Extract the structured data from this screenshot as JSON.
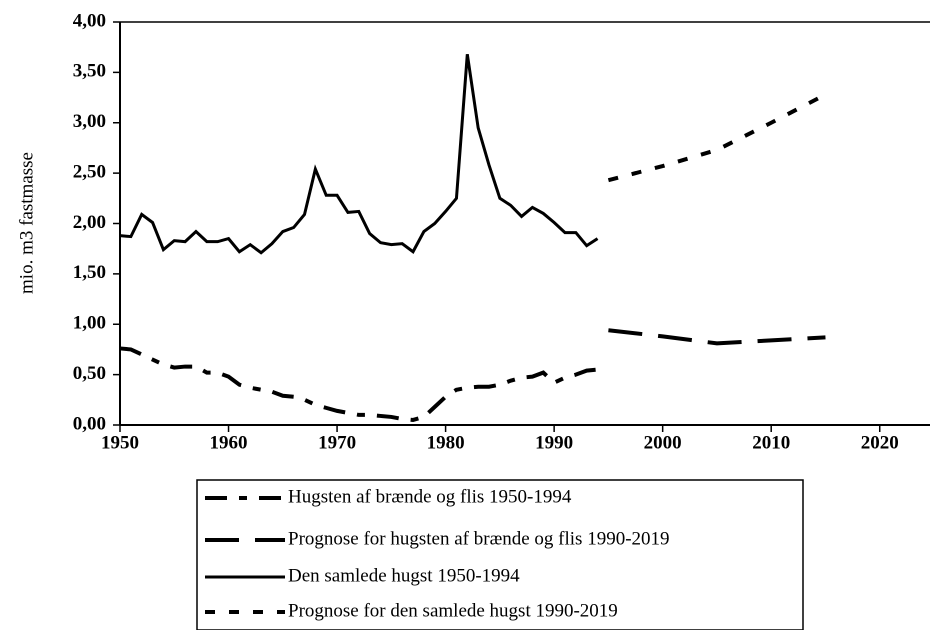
{
  "chart_data": {
    "type": "line",
    "y_label": "mio. m3 fastmasse",
    "xlim": [
      1950,
      2025
    ],
    "xticks": [
      1950,
      1960,
      1970,
      1980,
      1990,
      2000,
      2010,
      2020
    ],
    "ylim": [
      0,
      4
    ],
    "yticks": [
      {
        "value": 0,
        "label": "0,00"
      },
      {
        "value": 0.5,
        "label": "0,50"
      },
      {
        "value": 1,
        "label": "1,00"
      },
      {
        "value": 1.5,
        "label": "1,50"
      },
      {
        "value": 2,
        "label": "2,00"
      },
      {
        "value": 2.5,
        "label": "2,50"
      },
      {
        "value": 3,
        "label": "3,00"
      },
      {
        "value": 3.5,
        "label": "3,50"
      },
      {
        "value": 4,
        "label": "4,00"
      }
    ],
    "series": [
      {
        "name": "Hugsten af brænde og flis 1950-1994",
        "color": "#000000",
        "style": "dash-mixed",
        "x": [
          1950,
          1951,
          1952,
          1953,
          1954,
          1955,
          1956,
          1957,
          1958,
          1959,
          1960,
          1961,
          1962,
          1963,
          1964,
          1965,
          1966,
          1967,
          1968,
          1969,
          1970,
          1971,
          1972,
          1973,
          1974,
          1975,
          1976,
          1977,
          1978,
          1979,
          1980,
          1981,
          1982,
          1983,
          1984,
          1985,
          1986,
          1987,
          1988,
          1989,
          1990,
          1991,
          1992,
          1993,
          1994
        ],
        "values": [
          0.76,
          0.75,
          0.7,
          0.65,
          0.6,
          0.57,
          0.58,
          0.58,
          0.52,
          0.52,
          0.48,
          0.4,
          0.37,
          0.35,
          0.33,
          0.29,
          0.28,
          0.25,
          0.2,
          0.17,
          0.14,
          0.12,
          0.1,
          0.1,
          0.09,
          0.08,
          0.06,
          0.05,
          0.08,
          0.18,
          0.28,
          0.35,
          0.37,
          0.38,
          0.38,
          0.4,
          0.44,
          0.47,
          0.48,
          0.52,
          0.42,
          0.47,
          0.5,
          0.54,
          0.55
        ]
      },
      {
        "name": "Prognose for hugsten af brænde og flis 1990-2019",
        "color": "#000000",
        "style": "dash-long",
        "x": [
          1995,
          2000,
          2005,
          2010,
          2015
        ],
        "values": [
          0.94,
          0.88,
          0.81,
          0.84,
          0.87
        ]
      },
      {
        "name": "Den samlede hugst 1950-1994",
        "color": "#000000",
        "style": "solid",
        "x": [
          1950,
          1951,
          1952,
          1953,
          1954,
          1955,
          1956,
          1957,
          1958,
          1959,
          1960,
          1961,
          1962,
          1963,
          1964,
          1965,
          1966,
          1967,
          1968,
          1969,
          1970,
          1971,
          1972,
          1973,
          1974,
          1975,
          1976,
          1977,
          1978,
          1979,
          1980,
          1981,
          1982,
          1983,
          1984,
          1985,
          1986,
          1987,
          1988,
          1989,
          1990,
          1991,
          1992,
          1993,
          1994
        ],
        "values": [
          1.88,
          1.87,
          2.09,
          2.01,
          1.74,
          1.83,
          1.82,
          1.92,
          1.82,
          1.82,
          1.85,
          1.72,
          1.79,
          1.71,
          1.8,
          1.92,
          1.96,
          2.09,
          2.54,
          2.28,
          2.28,
          2.11,
          2.12,
          1.9,
          1.81,
          1.79,
          1.8,
          1.72,
          1.92,
          2.0,
          2.12,
          2.25,
          3.68,
          2.95,
          2.58,
          2.25,
          2.18,
          2.07,
          2.16,
          2.1,
          2.01,
          1.91,
          1.91,
          1.78,
          1.85
        ]
      },
      {
        "name": "Prognose for den samlede hugst 1990-2019",
        "color": "#000000",
        "style": "dotted",
        "x": [
          1995,
          2000,
          2005,
          2010,
          2015
        ],
        "values": [
          2.43,
          2.57,
          2.73,
          3.0,
          3.28
        ]
      }
    ]
  }
}
